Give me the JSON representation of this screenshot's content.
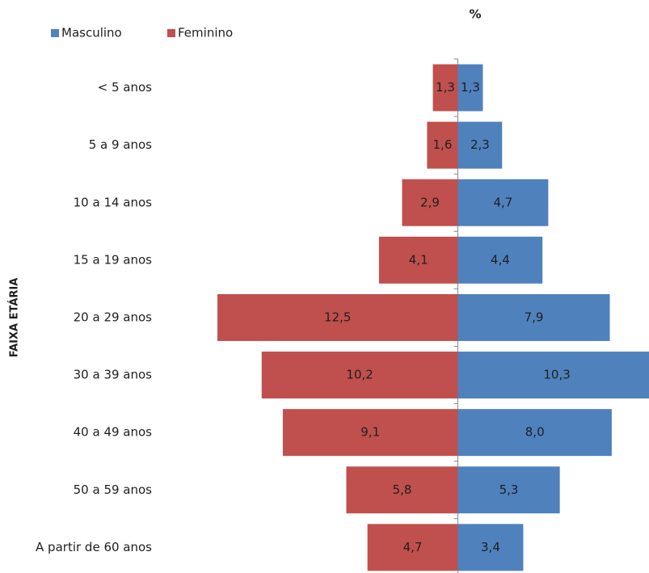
{
  "chart_data": {
    "type": "pyramid",
    "title": "%",
    "y_label": "FAIXA ETÁRIA",
    "legend": "top-left",
    "categories": [
      "< 5 anos",
      "5 a 9 anos",
      "10 a 14 anos",
      "15 a 19 anos",
      "20 a 29 anos",
      "30 a 39 anos",
      "40 a 49 anos",
      "50 a 59 anos",
      "A partir de 60 anos"
    ],
    "series": [
      {
        "name": "Masculino",
        "color": "#4f81bd",
        "side": "right",
        "values": [
          1.3,
          2.3,
          4.7,
          4.4,
          7.9,
          10.3,
          8.0,
          5.3,
          3.4
        ],
        "value_labels": [
          "1,3",
          "2,3",
          "4,7",
          "4,4",
          "7,9",
          "10,3",
          "8,0",
          "5,3",
          "3,4"
        ]
      },
      {
        "name": "Feminino",
        "color": "#c0504d",
        "side": "left",
        "values": [
          1.3,
          1.6,
          2.9,
          4.1,
          12.5,
          10.2,
          9.1,
          5.8,
          4.7
        ],
        "value_labels": [
          "1,3",
          "1,6",
          "2,9",
          "4,1",
          "12,5",
          "10,2",
          "9,1",
          "5,8",
          "4,7"
        ]
      }
    ]
  }
}
